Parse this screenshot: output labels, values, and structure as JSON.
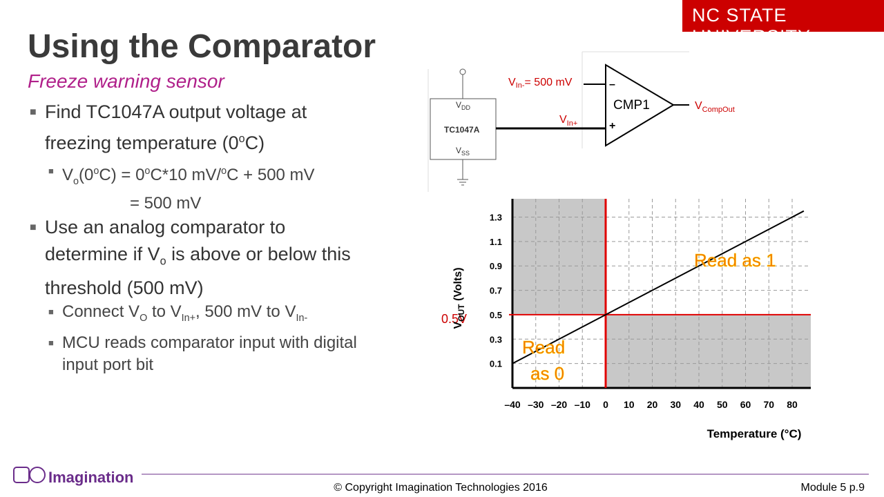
{
  "header": {
    "title": "Using the Comparator",
    "subtitle": "Freeze warning sensor",
    "brand": "NC STATE UNIVERSITY"
  },
  "bullets": [
    {
      "parts": [
        "Find TC1047A output voltage at freezing temperature (0",
        "o",
        "C)"
      ]
    },
    {
      "parts": [
        "V",
        "o",
        "(0",
        "o",
        "C) =  0",
        "o",
        "C*10 mV/",
        "o",
        "C + 500 mV"
      ],
      "line2": "= 500 mV"
    },
    {
      "parts": [
        "Use an analog comparator to determine if V",
        "o",
        " is above or below this threshold (500 mV)"
      ]
    },
    {
      "parts": [
        "Connect V",
        "O",
        " to V",
        "In+",
        ", 500 mV to V",
        "In-"
      ]
    },
    {
      "parts": [
        "MCU reads comparator input with digital input port bit"
      ]
    }
  ],
  "circuit": {
    "vdd": [
      "V",
      "DD"
    ],
    "chip": "TC1047A",
    "vss": [
      "V",
      "SS"
    ],
    "vin_minus": [
      "V",
      "In-",
      "= 500 mV"
    ],
    "vin_plus": [
      "V",
      "In+"
    ],
    "comparator": "CMP1",
    "minus": "–",
    "plus": "+",
    "output": [
      "V",
      "CompOut"
    ]
  },
  "chart_data": {
    "type": "line",
    "x": [
      -40,
      85
    ],
    "values": [
      0.1,
      1.35
    ],
    "color": "#000000",
    "xlim": [
      -40,
      88
    ],
    "ylim": [
      -0.1,
      1.45
    ],
    "xticks": [
      {
        "value": -40,
        "label": "–40"
      },
      {
        "value": -30,
        "label": "–30"
      },
      {
        "value": -20,
        "label": "–20"
      },
      {
        "value": -10,
        "label": "–10"
      },
      0,
      10,
      20,
      30,
      40,
      50,
      60,
      70,
      80
    ],
    "yticks": [
      0.1,
      0.3,
      0.5,
      0.7,
      0.9,
      1.1,
      1.3
    ],
    "x_label": "Temperature (°C)",
    "y_label": [
      "V",
      "OUT",
      " (Volts)"
    ],
    "threshold": {
      "label": "0.5V",
      "value": 0.5
    },
    "annotations": [
      "Read as 1",
      "Read",
      "as 0"
    ],
    "grid": true
  },
  "footer": {
    "logo": "Imagination",
    "copyright": "© Copyright Imagination Technologies 2016",
    "page": "Module 5 p.9"
  }
}
